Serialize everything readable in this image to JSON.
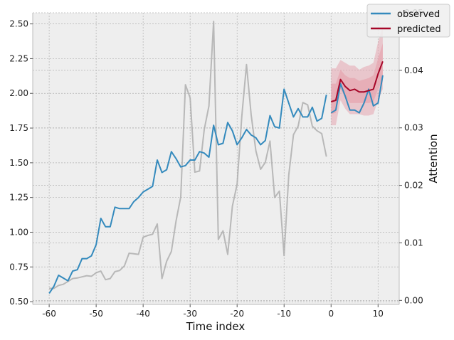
{
  "chart_data": {
    "type": "line",
    "xlabel": "Time index",
    "ylabel_right": "Attention",
    "xlim": [
      -63.5,
      14.5
    ],
    "ylim": [
      0.48,
      2.58
    ],
    "ylim_right": [
      -0.0007,
      0.05
    ],
    "grid": true,
    "legend_position": "top-right",
    "x_ticks": [
      -60,
      -50,
      -40,
      -30,
      -20,
      -10,
      0,
      10
    ],
    "y_ticks": [
      0.5,
      0.75,
      1.0,
      1.25,
      1.5,
      1.75,
      2.0,
      2.25,
      2.5
    ],
    "y_tick_labels": [
      "0.50",
      "0.75",
      "1.00",
      "1.25",
      "1.50",
      "1.75",
      "2.00",
      "2.25",
      "2.50"
    ],
    "y_right_ticks": [
      0.0,
      0.01,
      0.02,
      0.03,
      0.04,
      0.05
    ],
    "y_right_tick_labels": [
      "0.00",
      "0.01",
      "0.02",
      "0.03",
      "0.04",
      "0.05"
    ],
    "colors": {
      "observed": "#348abd",
      "predicted": "#a60628",
      "band": "#e5a5b0",
      "attention": "#aaaaaa",
      "background": "#eeeeee",
      "grid": "#b2b2b2"
    },
    "series": [
      {
        "name": "observed",
        "x": [
          -60,
          -59,
          -58,
          -57,
          -56,
          -55,
          -54,
          -53,
          -52,
          -51,
          -50,
          -49,
          -48,
          -47,
          -46,
          -45,
          -44,
          -43,
          -42,
          -41,
          -40,
          -39,
          -38,
          -37,
          -36,
          -35,
          -34,
          -33,
          -32,
          -31,
          -30,
          -29,
          -28,
          -27,
          -26,
          -25,
          -24,
          -23,
          -22,
          -21,
          -20,
          -19,
          -18,
          -17,
          -16,
          -15,
          -14,
          -13,
          -12,
          -11,
          -10,
          -9,
          -8,
          -7,
          -6,
          -5,
          -4,
          -3,
          -2,
          -1
        ],
        "values": [
          0.56,
          0.61,
          0.69,
          0.67,
          0.65,
          0.72,
          0.73,
          0.81,
          0.81,
          0.83,
          0.91,
          1.1,
          1.04,
          1.04,
          1.18,
          1.17,
          1.17,
          1.17,
          1.22,
          1.25,
          1.29,
          1.31,
          1.33,
          1.52,
          1.43,
          1.45,
          1.58,
          1.53,
          1.47,
          1.48,
          1.52,
          1.52,
          1.58,
          1.57,
          1.54,
          1.77,
          1.63,
          1.64,
          1.79,
          1.73,
          1.63,
          1.68,
          1.74,
          1.7,
          1.68,
          1.63,
          1.66,
          1.84,
          1.76,
          1.75,
          2.03,
          1.93,
          1.83,
          1.89,
          1.83,
          1.83,
          1.9,
          1.8,
          1.82,
          1.99
        ]
      },
      {
        "name": "observed_future",
        "x": [
          0,
          1,
          2,
          3,
          4,
          5,
          6,
          7,
          8,
          9,
          10,
          11
        ],
        "values": [
          1.86,
          1.88,
          2.07,
          1.98,
          1.88,
          1.88,
          1.86,
          1.93,
          2.03,
          1.91,
          1.93,
          2.13
        ]
      },
      {
        "name": "predicted",
        "x": [
          0,
          1,
          2,
          3,
          4,
          5,
          6,
          7,
          8,
          9,
          10,
          11
        ],
        "values": [
          1.94,
          1.95,
          2.1,
          2.05,
          2.02,
          2.03,
          2.01,
          2.01,
          2.02,
          2.03,
          2.14,
          2.23
        ],
        "band_outer": {
          "upper": [
            2.18,
            2.18,
            2.24,
            2.22,
            2.2,
            2.2,
            2.17,
            2.19,
            2.2,
            2.22,
            2.37,
            2.48
          ],
          "lower": [
            1.77,
            1.77,
            1.95,
            1.89,
            1.85,
            1.85,
            1.85,
            1.84,
            1.84,
            1.85,
            1.95,
            2.03
          ]
        },
        "band_inner": {
          "upper": [
            2.07,
            2.07,
            2.17,
            2.13,
            2.11,
            2.11,
            2.09,
            2.1,
            2.11,
            2.13,
            2.25,
            2.36
          ],
          "lower": [
            1.85,
            1.86,
            2.03,
            1.97,
            1.93,
            1.93,
            1.93,
            1.93,
            1.93,
            1.94,
            2.03,
            2.1
          ]
        }
      },
      {
        "name": "attention",
        "axis": "right",
        "x": [
          -60,
          -59,
          -58,
          -57,
          -56,
          -55,
          -54,
          -53,
          -52,
          -51,
          -50,
          -49,
          -48,
          -47,
          -46,
          -45,
          -44,
          -43,
          -42,
          -41,
          -40,
          -39,
          -38,
          -37,
          -36,
          -35,
          -34,
          -33,
          -32,
          -31,
          -30,
          -29,
          -28,
          -27,
          -26,
          -25,
          -24,
          -23,
          -22,
          -21,
          -20,
          -19,
          -18,
          -17,
          -16,
          -15,
          -14,
          -13,
          -12,
          -11,
          -10,
          -9,
          -8,
          -7,
          -6,
          -5,
          -4,
          -3,
          -2,
          -1
        ],
        "values": [
          0.0021,
          0.0021,
          0.0026,
          0.0028,
          0.0033,
          0.0038,
          0.0039,
          0.0041,
          0.0043,
          0.0042,
          0.0048,
          0.0051,
          0.0036,
          0.0038,
          0.005,
          0.0052,
          0.006,
          0.0082,
          0.0081,
          0.008,
          0.011,
          0.0113,
          0.0115,
          0.0133,
          0.0038,
          0.0068,
          0.0085,
          0.0138,
          0.018,
          0.0375,
          0.0352,
          0.0223,
          0.0225,
          0.0297,
          0.0338,
          0.0485,
          0.0106,
          0.0121,
          0.008,
          0.0164,
          0.0202,
          0.032,
          0.041,
          0.0322,
          0.026,
          0.0228,
          0.024,
          0.0277,
          0.0179,
          0.019,
          0.0078,
          0.0218,
          0.0288,
          0.0303,
          0.0344,
          0.034,
          0.0303,
          0.0295,
          0.029,
          0.025
        ]
      }
    ],
    "legend": [
      {
        "label": "observed",
        "color_key": "observed"
      },
      {
        "label": "predicted",
        "color_key": "predicted"
      }
    ]
  }
}
